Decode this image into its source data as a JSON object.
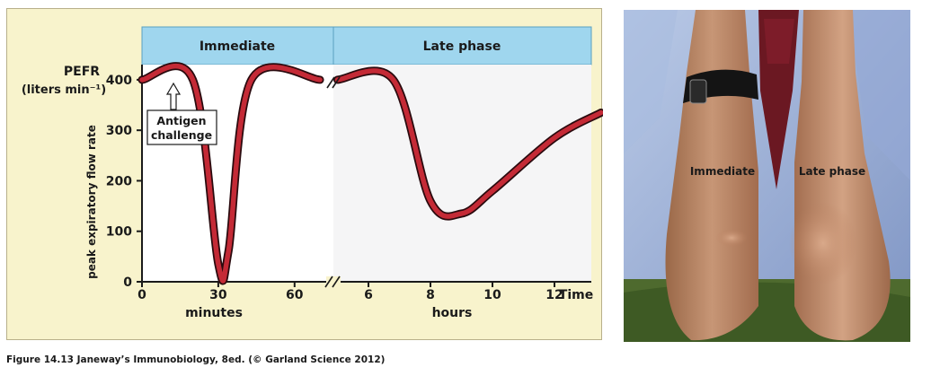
{
  "chart_data": {
    "type": "line",
    "phases": [
      "Immediate",
      "Late phase"
    ],
    "ylabel_top": "PEFR",
    "ylabel_units": "(liters min⁻¹)",
    "ylabel_rotated": "peak expiratory flow rate",
    "yticks": [
      0,
      100,
      200,
      300,
      400
    ],
    "ylim": [
      0,
      400
    ],
    "x_minutes_ticks": [
      "0",
      "30",
      "60"
    ],
    "x_minutes_label": "minutes",
    "x_hours_ticks": [
      "6",
      "8",
      "10",
      "12"
    ],
    "x_hours_label": "hours",
    "x_end_label": "Time",
    "annotation": [
      "Antigen",
      "challenge"
    ],
    "series": [
      {
        "segment": "minutes",
        "x": [
          0,
          20,
          30,
          34,
          43,
          70
        ],
        "y": [
          400,
          400,
          35,
          60,
          400,
          400
        ]
      },
      {
        "segment": "hours",
        "x": [
          5,
          6.8,
          8,
          9,
          10,
          12,
          13.5
        ],
        "y": [
          400,
          400,
          160,
          135,
          180,
          285,
          335
        ]
      }
    ]
  },
  "photo": {
    "label_left": "Immediate",
    "label_right": "Late phase"
  },
  "caption": "Figure 14.13  Janeway’s Immunobiology, 8ed. (© Garland Science 2012)"
}
